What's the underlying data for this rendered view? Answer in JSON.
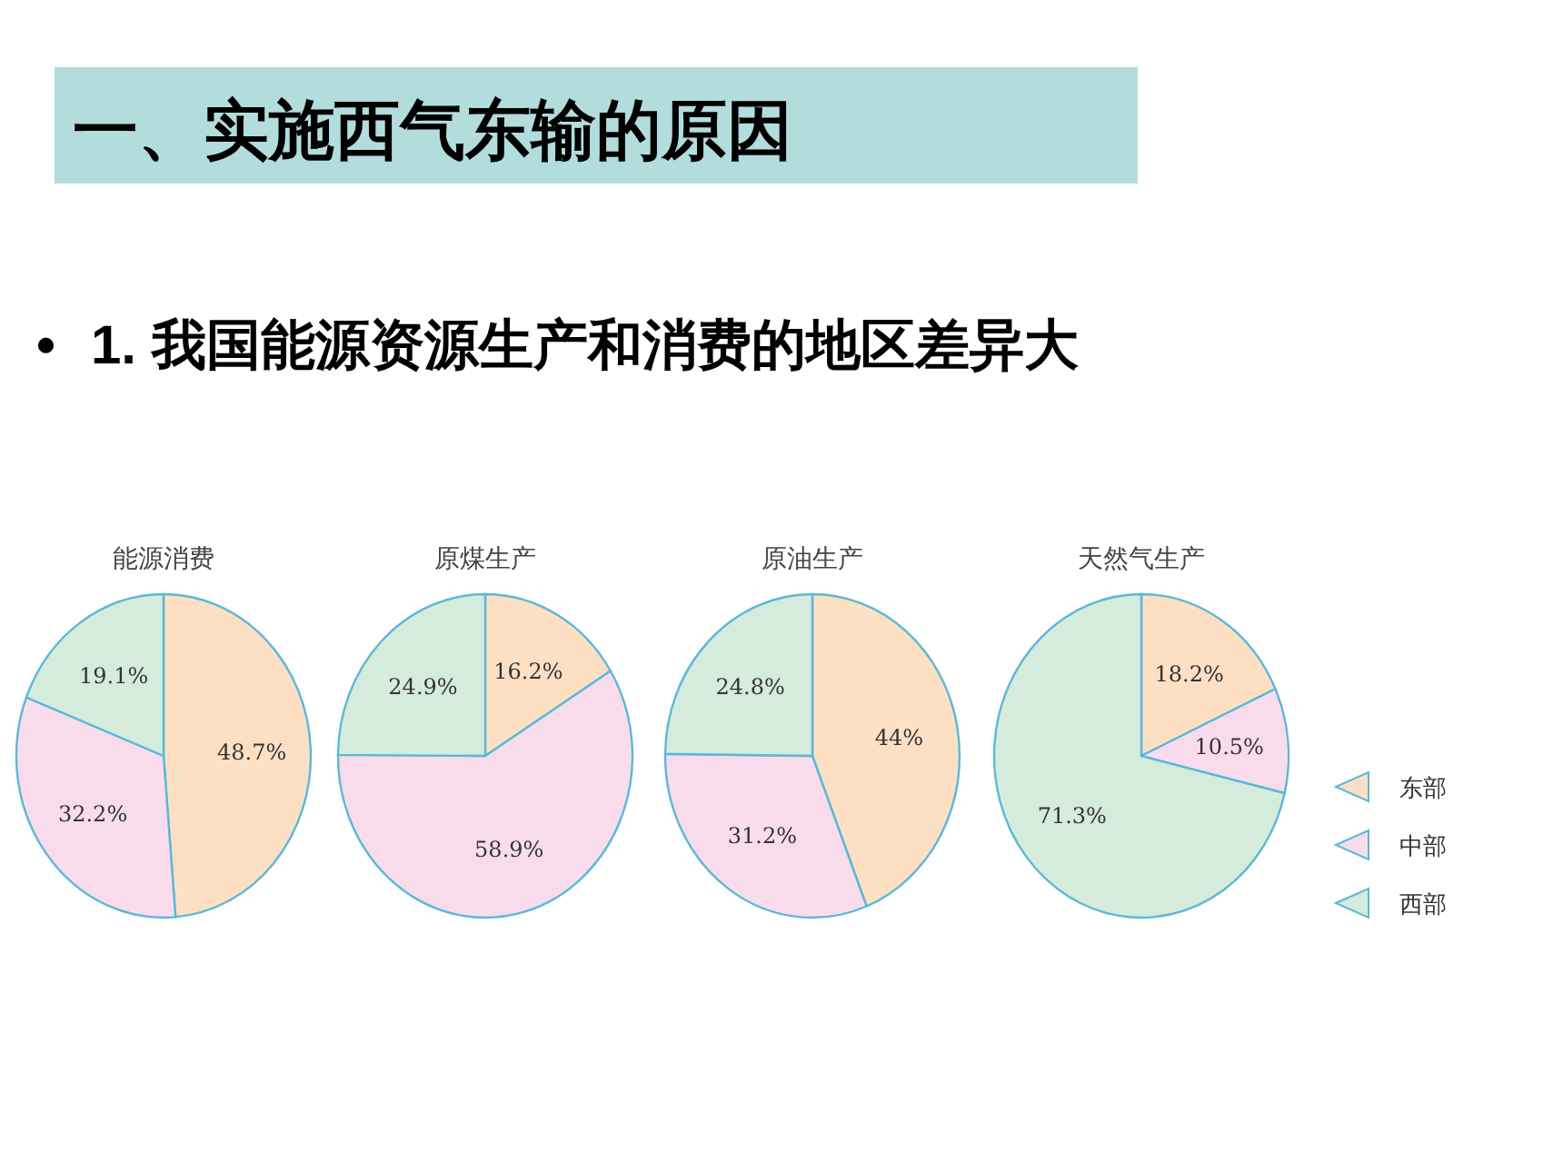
{
  "chart_data": [
    {
      "type": "pie",
      "title": "能源消费",
      "annotations": [
        "一、实施西气东输的原因",
        "•",
        "1. 我国能源资源生产和消费的地区差异大"
      ],
      "categories": [
        null,
        null,
        null
      ],
      "values": [
        48.7,
        32.2,
        19.1
      ],
      "colors": [
        "#fde0c4",
        "#f9dcec",
        "#d5ebdc"
      ],
      "value_labels": [
        "48.7%",
        "32.2%",
        "19.1%"
      ],
      "legend": false
    },
    {
      "type": "pie",
      "title": "原煤生产",
      "categories": [
        null,
        null,
        null
      ],
      "values": [
        16.2,
        58.9,
        24.9
      ],
      "colors": [
        "#fde0c4",
        "#f9dcec",
        "#d5ebdc"
      ],
      "value_labels": [
        "16.2%",
        "58.9%",
        "24.9%"
      ],
      "legend": false
    },
    {
      "type": "pie",
      "title": "原油生产",
      "categories": [
        null,
        null,
        null
      ],
      "values": [
        44,
        31.2,
        24.8
      ],
      "colors": [
        "#fde0c4",
        "#f9dcec",
        "#d5ebdc"
      ],
      "value_labels": [
        "44%",
        "31.2%",
        "24.8%"
      ],
      "legend": false
    },
    {
      "type": "pie",
      "title": "天然气生产",
      "categories": [
        "东部",
        "中部",
        "西部"
      ],
      "values": [
        18.2,
        10.5,
        71.3
      ],
      "colors": [
        "#fde0c4",
        "#f9dcec",
        "#d5ebdc"
      ],
      "value_labels": [
        "18.2%",
        "10.5%",
        "71.3%"
      ],
      "legend": "right"
    }
  ]
}
